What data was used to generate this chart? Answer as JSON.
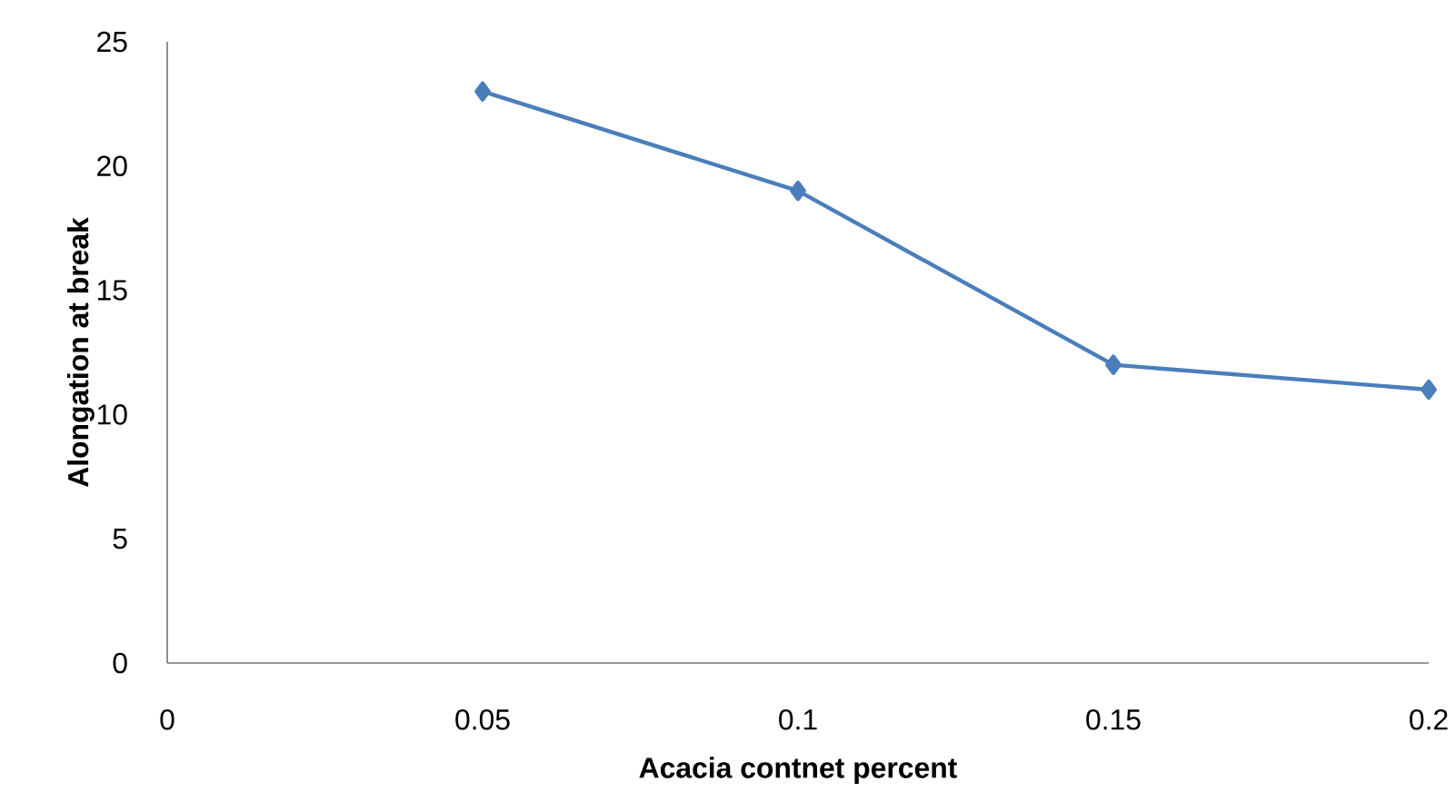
{
  "chart_data": {
    "type": "line",
    "xlabel": "Acacia contnet percent",
    "ylabel": "Alongation at break",
    "x": [
      0.05,
      0.1,
      0.15,
      0.2
    ],
    "series": [
      {
        "color": "#4a7ebb",
        "values": [
          23,
          19,
          12,
          11
        ]
      }
    ],
    "xlim": [
      0,
      0.2
    ],
    "xticks": [
      0,
      0.05,
      0.1,
      0.15,
      0.2
    ],
    "ylim": [
      0,
      25
    ],
    "yticks": [
      0,
      5,
      10,
      15,
      20,
      25
    ],
    "grid": false,
    "marker": "diamond",
    "line_style": "solid"
  }
}
